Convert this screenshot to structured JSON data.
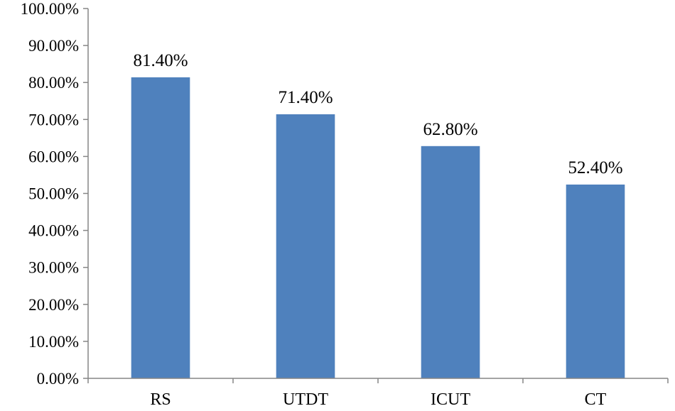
{
  "chart_data": {
    "type": "bar",
    "title": "",
    "xlabel": "",
    "ylabel": "",
    "categories": [
      "RS",
      "UTDT",
      "ICUT",
      "CT"
    ],
    "values": [
      81.4,
      71.4,
      62.8,
      52.4
    ],
    "data_labels": [
      "81.40%",
      "71.40%",
      "62.80%",
      "52.40%"
    ],
    "ylim": [
      0,
      100
    ],
    "yticks": [
      0,
      10,
      20,
      30,
      40,
      50,
      60,
      70,
      80,
      90,
      100
    ],
    "ytick_labels": [
      "0.00%",
      "10.00%",
      "20.00%",
      "30.00%",
      "40.00%",
      "50.00%",
      "60.00%",
      "70.00%",
      "80.00%",
      "90.00%",
      "100.00%"
    ],
    "grid": false,
    "legend": "none",
    "bar_color": "#4f81bd",
    "axis_color": "#868686"
  }
}
